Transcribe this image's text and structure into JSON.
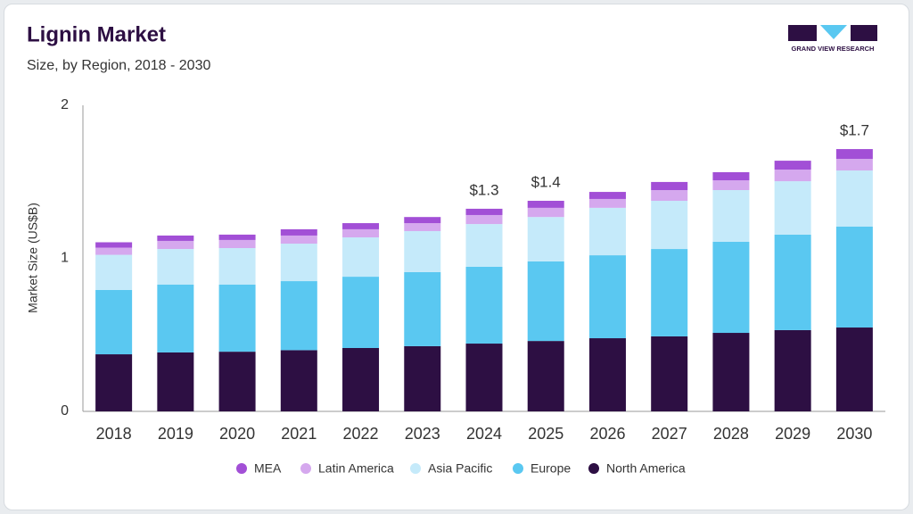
{
  "chart_data": {
    "type": "stacked_bar",
    "title": "Lignin Market",
    "subtitle": "Size, by Region, 2018 - 2030",
    "y_label": "Market Size (US$B)",
    "logo_text": "GRAND VIEW RESEARCH",
    "categories": [
      "2018",
      "2019",
      "2020",
      "2021",
      "2022",
      "2023",
      "2024",
      "2025",
      "2026",
      "2027",
      "2028",
      "2029",
      "2030"
    ],
    "series": [
      {
        "name": "MEA",
        "color": "#a24fd6",
        "values": [
          0.035,
          0.035,
          0.035,
          0.041,
          0.04,
          0.04,
          0.041,
          0.046,
          0.046,
          0.053,
          0.053,
          0.058,
          0.064
        ]
      },
      {
        "name": "Latin America",
        "color": "#d5a8ee",
        "values": [
          0.047,
          0.053,
          0.053,
          0.053,
          0.053,
          0.052,
          0.059,
          0.06,
          0.058,
          0.07,
          0.064,
          0.076,
          0.076
        ]
      },
      {
        "name": "Asia Pacific",
        "color": "#c5eafa",
        "values": [
          0.23,
          0.233,
          0.239,
          0.245,
          0.257,
          0.268,
          0.279,
          0.29,
          0.31,
          0.315,
          0.338,
          0.349,
          0.367
        ]
      },
      {
        "name": "Europe",
        "color": "#5ac8f1",
        "values": [
          0.42,
          0.443,
          0.438,
          0.451,
          0.466,
          0.484,
          0.502,
          0.52,
          0.542,
          0.571,
          0.595,
          0.624,
          0.659
        ]
      },
      {
        "name": "North America",
        "color": "#2d0f43",
        "values": [
          0.373,
          0.385,
          0.39,
          0.4,
          0.414,
          0.426,
          0.443,
          0.46,
          0.478,
          0.49,
          0.513,
          0.531,
          0.548
        ]
      }
    ],
    "annotations": [
      {
        "category": "2024",
        "text": "$1.3"
      },
      {
        "category": "2025",
        "text": "$1.4"
      },
      {
        "category": "2030",
        "text": "$1.7"
      }
    ],
    "ylim": [
      0,
      2
    ],
    "yticks": [
      0,
      1,
      2
    ],
    "grid": false
  }
}
